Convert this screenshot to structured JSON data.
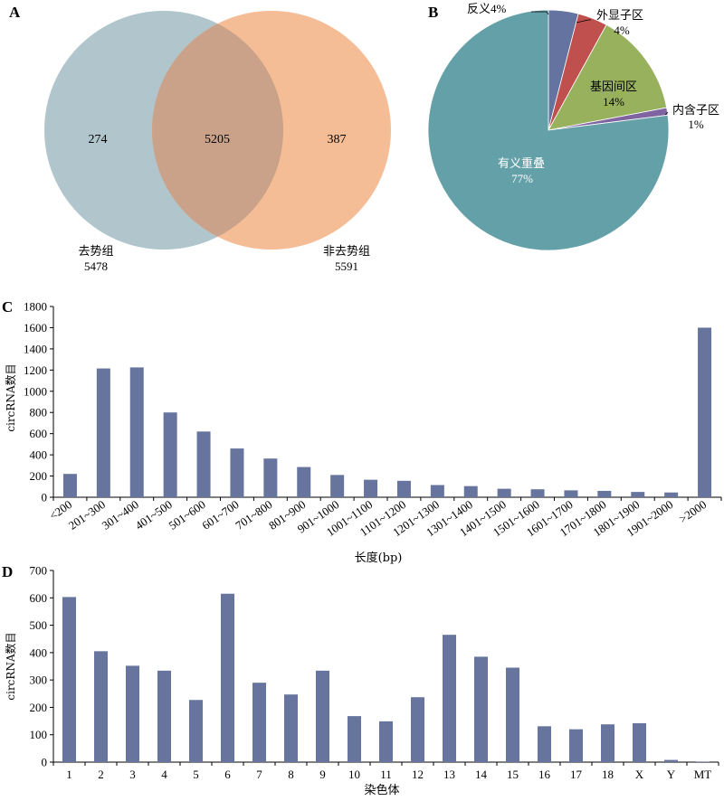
{
  "colors": {
    "bar": "#66749e",
    "venn_left": "#b0c5cc",
    "venn_right": "#f5bd96",
    "venn_overlap": "#c9a289",
    "pie": [
      "#64739f",
      "#c0504d",
      "#98b15d",
      "#8064a2",
      "#64a0a8"
    ]
  },
  "chart_data": [
    {
      "panel": "A",
      "type": "venn",
      "sets": [
        {
          "name": "去势组",
          "total": "5478",
          "only": "274"
        },
        {
          "name": "非去势组",
          "total": "5591",
          "only": "387"
        }
      ],
      "overlap": "5205"
    },
    {
      "panel": "B",
      "type": "pie",
      "slices": [
        {
          "name": "反义",
          "value": 4,
          "label": "4%"
        },
        {
          "name": "外显子区",
          "value": 4,
          "label": "4%"
        },
        {
          "name": "基因间区",
          "value": 14,
          "label": "14%"
        },
        {
          "name": "内含子区",
          "value": 1,
          "label": "1%"
        },
        {
          "name": "有义重叠",
          "value": 77,
          "label": "77%"
        }
      ]
    },
    {
      "panel": "C",
      "type": "bar",
      "categories": [
        "<200",
        "201~300",
        "301~400",
        "401~500",
        "501~600",
        "601~700",
        "701~800",
        "801~900",
        "901~1000",
        "1001~1100",
        "1101~1200",
        "1201~1300",
        "1301~1400",
        "1401~1500",
        "1501~1600",
        "1601~1700",
        "1701~1800",
        "1801~1900",
        "1901~2000",
        ">2000"
      ],
      "values": [
        220,
        1215,
        1225,
        800,
        620,
        460,
        365,
        285,
        210,
        165,
        155,
        115,
        105,
        80,
        75,
        65,
        60,
        50,
        45,
        1600
      ],
      "xlabel": "长度(bp)",
      "ylabel": "circRNA数目",
      "ylim": [
        0,
        1800
      ],
      "yticks": [
        "0",
        "200",
        "400",
        "600",
        "800",
        "1000",
        "1200",
        "1400",
        "1600",
        "1800"
      ]
    },
    {
      "panel": "D",
      "type": "bar",
      "categories": [
        "1",
        "2",
        "3",
        "4",
        "5",
        "6",
        "7",
        "8",
        "9",
        "10",
        "11",
        "12",
        "13",
        "14",
        "15",
        "16",
        "17",
        "18",
        "X",
        "Y",
        "MT"
      ],
      "values": [
        603,
        405,
        352,
        334,
        227,
        615,
        290,
        247,
        334,
        168,
        149,
        237,
        465,
        385,
        345,
        131,
        120,
        138,
        142,
        8,
        2
      ],
      "xlabel": "染色体",
      "ylabel": "circRNA数目",
      "ylim": [
        0,
        700
      ],
      "yticks": [
        "0",
        "100",
        "200",
        "300",
        "400",
        "500",
        "600",
        "700"
      ]
    }
  ]
}
